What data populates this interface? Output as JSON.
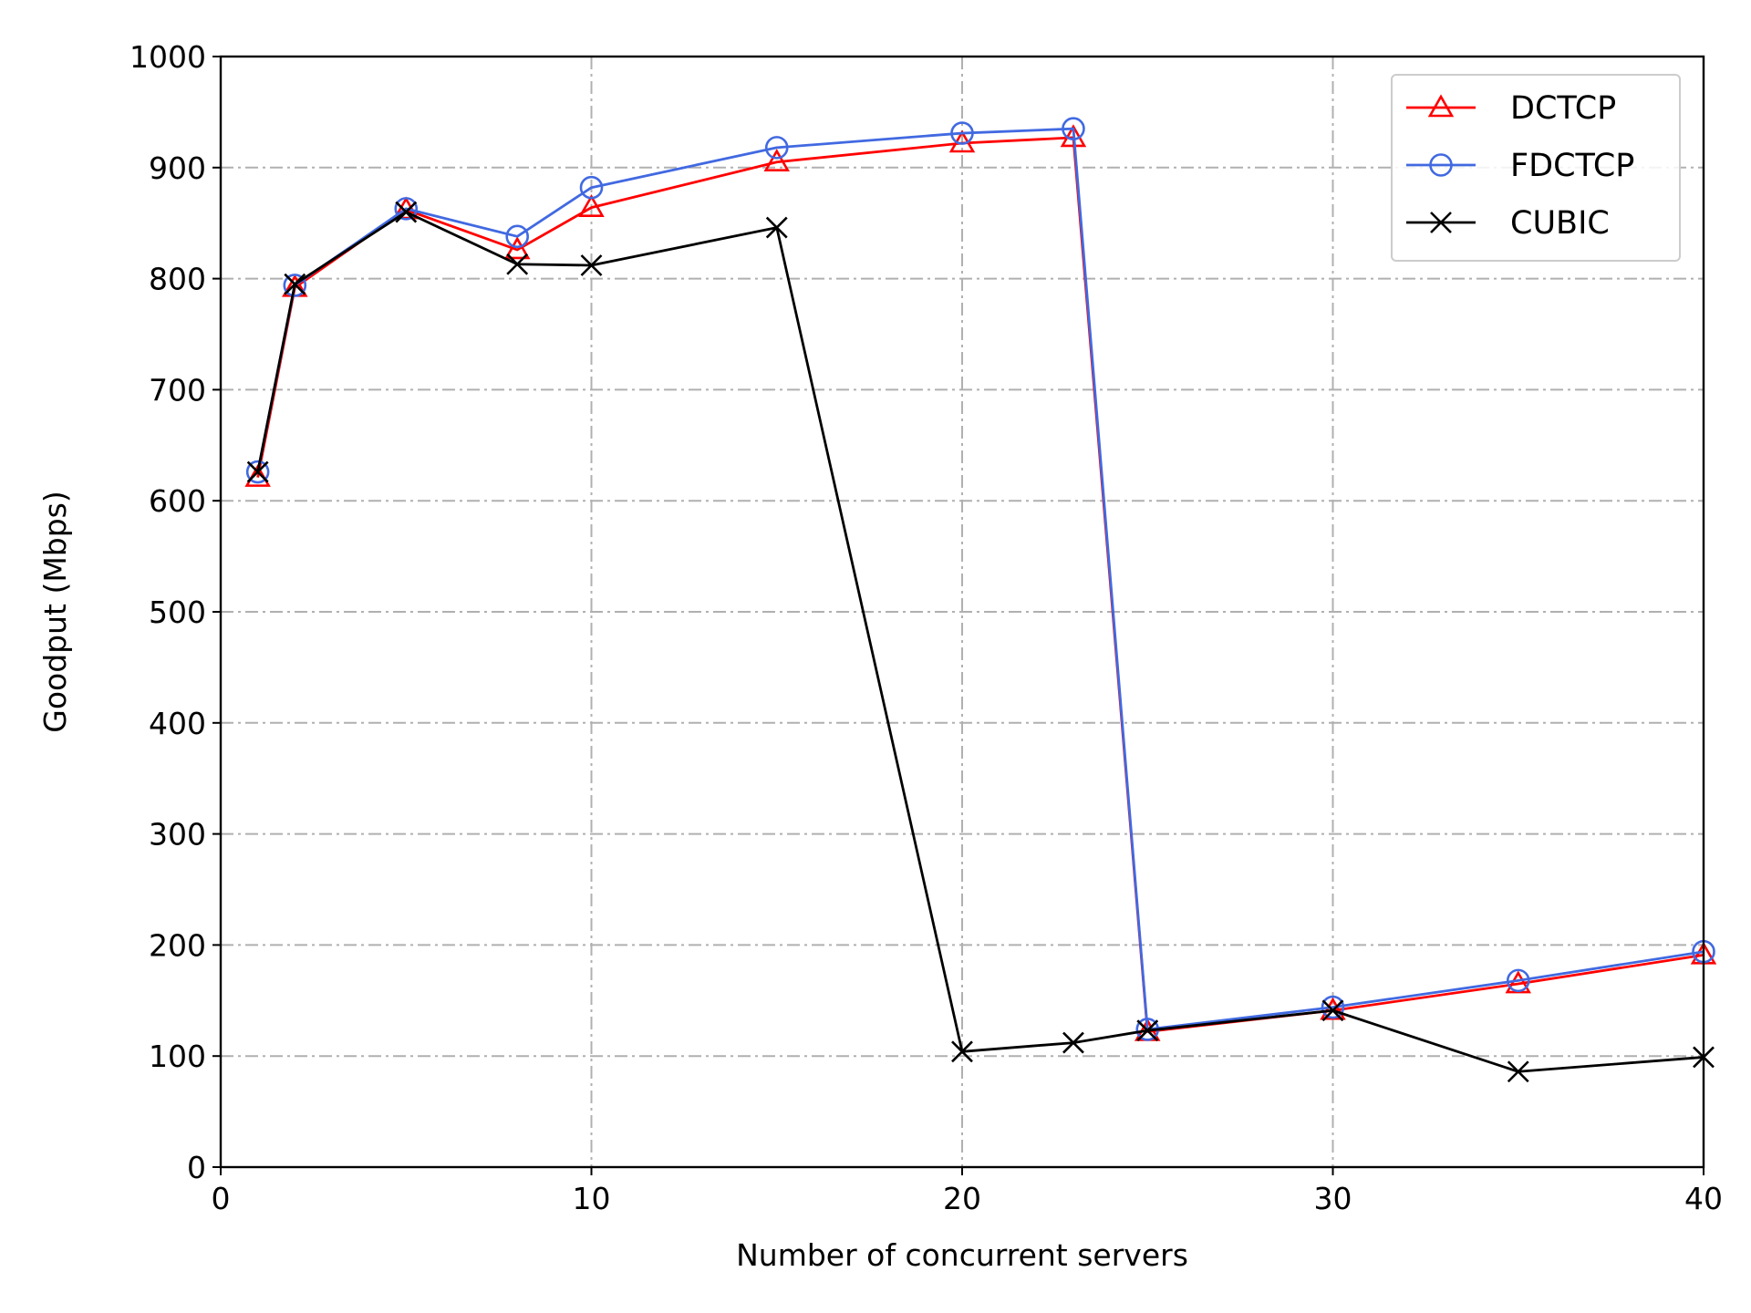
{
  "chart_data": {
    "type": "line",
    "title": "",
    "xlabel": "Number of concurrent servers",
    "ylabel": "Goodput (Mbps)",
    "xlim": [
      0,
      40
    ],
    "ylim": [
      0,
      1000
    ],
    "xticks": [
      "0",
      "10",
      "20",
      "30",
      "40"
    ],
    "yticks": [
      "0",
      "100",
      "200",
      "300",
      "400",
      "500",
      "600",
      "700",
      "800",
      "900",
      "1000"
    ],
    "grid": true,
    "legend_position": "top-right",
    "series": [
      {
        "name": "DCTCP",
        "color": "#ff0000",
        "marker": "triangle",
        "x": [
          1,
          2,
          5,
          8,
          10,
          15,
          20,
          23,
          25,
          30,
          35,
          40
        ],
        "y": [
          621,
          792,
          862,
          826,
          864,
          905,
          922,
          927,
          122,
          141,
          165,
          191
        ]
      },
      {
        "name": "FDCTCP",
        "color": "#4169e1",
        "marker": "circle",
        "x": [
          1,
          2,
          5,
          8,
          10,
          15,
          20,
          23,
          25,
          30,
          35,
          40
        ],
        "y": [
          626,
          794,
          863,
          838,
          882,
          918,
          931,
          935,
          124,
          144,
          168,
          194
        ]
      },
      {
        "name": "CUBIC",
        "color": "#000000",
        "marker": "x",
        "x": [
          1,
          2,
          5,
          8,
          10,
          15,
          20,
          23,
          25,
          30,
          35,
          40
        ],
        "y": [
          626,
          795,
          860,
          813,
          812,
          846,
          104,
          112,
          123,
          141,
          86,
          99
        ]
      }
    ]
  }
}
